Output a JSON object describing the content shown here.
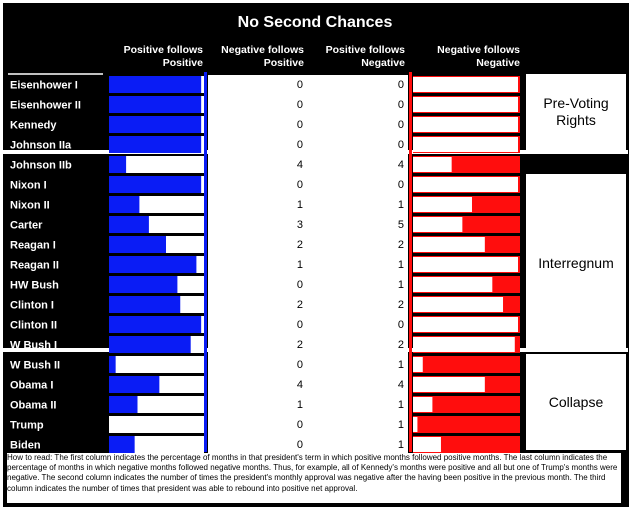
{
  "chart_data": {
    "type": "bar",
    "title": "No Second Chances",
    "columns": [
      "Positive follows Positive",
      "Negative follows Positive",
      "Positive follows Negative",
      "Negative follows Negative"
    ],
    "rows": [
      {
        "president": "Eisenhower I",
        "pos_follows_pos": 0.97,
        "neg_follows_pos": 0,
        "pos_follows_neg": 0,
        "neg_follows_neg": 0.0,
        "group": 0
      },
      {
        "president": "Eisenhower II",
        "pos_follows_pos": 0.97,
        "neg_follows_pos": 0,
        "pos_follows_neg": 0,
        "neg_follows_neg": 0.0,
        "group": 0
      },
      {
        "president": "Kennedy",
        "pos_follows_pos": 0.97,
        "neg_follows_pos": 0,
        "pos_follows_neg": 0,
        "neg_follows_neg": 0.0,
        "group": 0
      },
      {
        "president": "Johnson IIa",
        "pos_follows_pos": 0.97,
        "neg_follows_pos": 0,
        "pos_follows_neg": 0,
        "neg_follows_neg": 0.0,
        "group": 0
      },
      {
        "president": "Johnson IIb",
        "pos_follows_pos": 0.18,
        "neg_follows_pos": 4,
        "pos_follows_neg": 4,
        "neg_follows_neg": 0.62,
        "group": 1
      },
      {
        "president": "Nixon I",
        "pos_follows_pos": 0.97,
        "neg_follows_pos": 0,
        "pos_follows_neg": 0,
        "neg_follows_neg": 0.0,
        "group": 1
      },
      {
        "president": "Nixon II",
        "pos_follows_pos": 0.32,
        "neg_follows_pos": 1,
        "pos_follows_neg": 1,
        "neg_follows_neg": 0.43,
        "group": 1
      },
      {
        "president": "Carter",
        "pos_follows_pos": 0.42,
        "neg_follows_pos": 3,
        "pos_follows_neg": 5,
        "neg_follows_neg": 0.52,
        "group": 1
      },
      {
        "president": "Reagan I",
        "pos_follows_pos": 0.6,
        "neg_follows_pos": 2,
        "pos_follows_neg": 2,
        "neg_follows_neg": 0.31,
        "group": 1
      },
      {
        "president": "Reagan II",
        "pos_follows_pos": 0.92,
        "neg_follows_pos": 1,
        "pos_follows_neg": 1,
        "neg_follows_neg": 0.0,
        "group": 1
      },
      {
        "president": "HW Bush",
        "pos_follows_pos": 0.72,
        "neg_follows_pos": 0,
        "pos_follows_neg": 1,
        "neg_follows_neg": 0.24,
        "group": 1
      },
      {
        "president": "Clinton I",
        "pos_follows_pos": 0.75,
        "neg_follows_pos": 2,
        "pos_follows_neg": 2,
        "neg_follows_neg": 0.14,
        "group": 1
      },
      {
        "president": "Clinton II",
        "pos_follows_pos": 0.97,
        "neg_follows_pos": 0,
        "pos_follows_neg": 0,
        "neg_follows_neg": 0.0,
        "group": 1
      },
      {
        "president": "W Bush I",
        "pos_follows_pos": 0.86,
        "neg_follows_pos": 2,
        "pos_follows_neg": 2,
        "neg_follows_neg": 0.03,
        "group": 1
      },
      {
        "president": "W Bush II",
        "pos_follows_pos": 0.07,
        "neg_follows_pos": 0,
        "pos_follows_neg": 1,
        "neg_follows_neg": 0.89,
        "group": 2
      },
      {
        "president": "Obama I",
        "pos_follows_pos": 0.53,
        "neg_follows_pos": 4,
        "pos_follows_neg": 4,
        "neg_follows_neg": 0.31,
        "group": 2
      },
      {
        "president": "Obama II",
        "pos_follows_pos": 0.3,
        "neg_follows_pos": 1,
        "pos_follows_neg": 1,
        "neg_follows_neg": 0.8,
        "group": 2
      },
      {
        "president": "Trump",
        "pos_follows_pos": 0.0,
        "neg_follows_pos": 0,
        "pos_follows_neg": 1,
        "neg_follows_neg": 0.94,
        "group": 2
      },
      {
        "president": "Biden",
        "pos_follows_pos": 0.27,
        "neg_follows_pos": 0,
        "pos_follows_neg": 1,
        "neg_follows_neg": 0.72,
        "group": 2
      }
    ],
    "groups": [
      "Pre-Voting\nRights",
      "Interregnum",
      "Collapse"
    ],
    "colors": {
      "positive": "#0a1cf5",
      "negative": "#ff0d0d",
      "background": "#000000",
      "cell": "#ffffff"
    },
    "note": "How to read: The first column indicates the percentage of months in that president's term in which positive months followed positive months. The last column indicates the percentage of months in which negative months followed negative months. Thus, for example, all of Kennedy's months were positive and all but one of Trump's months were negative. The second column indicates the number of times the president's monthly approval was negative after the having been positive in the previous month. The third column indicates the number of times that president was able to rebound into positive net approval."
  }
}
